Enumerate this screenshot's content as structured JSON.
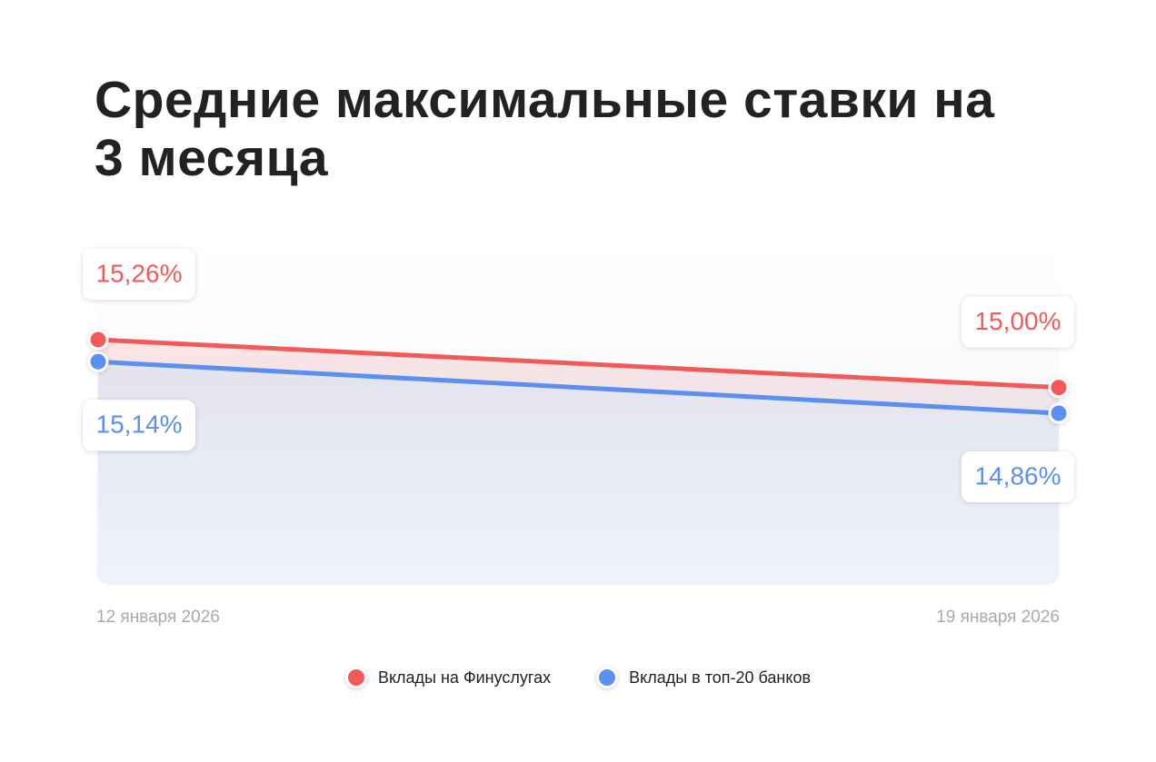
{
  "chart_data": {
    "type": "line",
    "title": "Средние максимальные ставки на 3 месяца",
    "x": [
      "12 января 2026",
      "19 января 2026"
    ],
    "series": [
      {
        "name": "Вклады на Финуслугах",
        "color": "#f25a5a",
        "values": [
          15.26,
          15.0
        ],
        "value_labels": [
          "15,26%",
          "15,00%"
        ]
      },
      {
        "name": "Вклады в топ-20 банков",
        "color": "#5b8ff0",
        "values": [
          15.14,
          14.86
        ],
        "value_labels": [
          "15,14%",
          "14,86%"
        ]
      }
    ]
  }
}
